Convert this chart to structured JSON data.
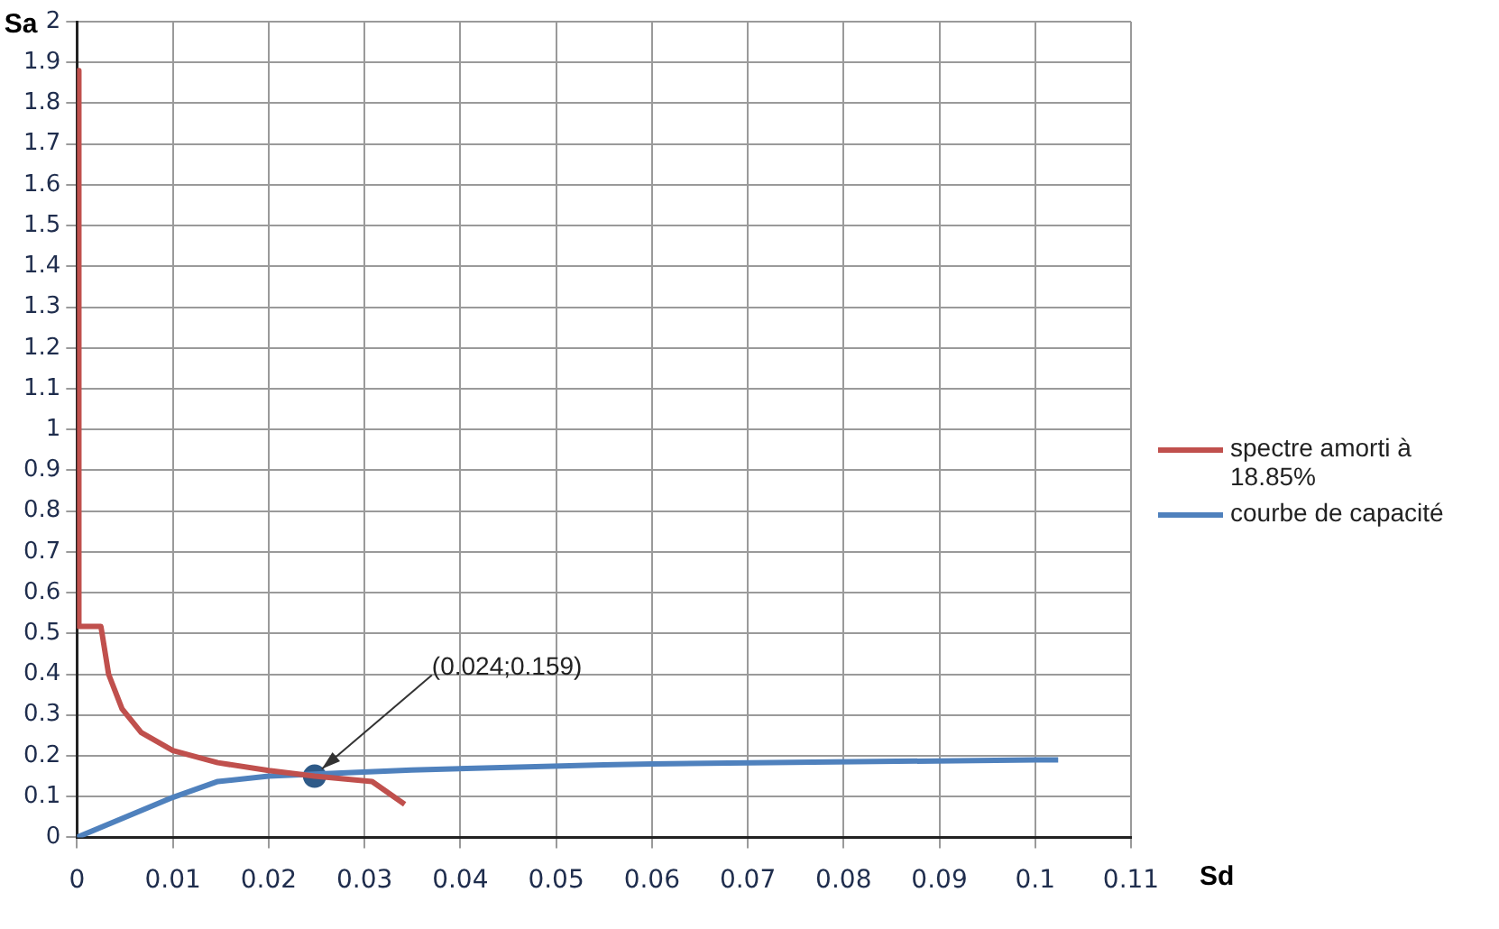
{
  "chart_data": {
    "type": "line",
    "xlabel": "Sd",
    "ylabel": "Sa",
    "xlim": [
      0,
      0.11
    ],
    "ylim": [
      0,
      2
    ],
    "xticks": [
      0,
      0.01,
      0.02,
      0.03,
      0.04,
      0.05,
      0.06,
      0.07,
      0.08,
      0.09,
      0.1,
      0.11
    ],
    "yticks": [
      0,
      0.1,
      0.2,
      0.3,
      0.4,
      0.5,
      0.6,
      0.7,
      0.8,
      0.9,
      1,
      1.1,
      1.2,
      1.3,
      1.4,
      1.5,
      1.6,
      1.7,
      1.8,
      1.9,
      2
    ],
    "grid": true,
    "legend": "right",
    "marker": "none",
    "series": [
      {
        "name": "spectre amorti à 18.85%",
        "color": "#c0504d",
        "x": [
          0.0002,
          0.0002,
          0.0025,
          0.0033,
          0.0047,
          0.0067,
          0.01,
          0.0147,
          0.02,
          0.0248,
          0.0308,
          0.0342
        ],
        "values": [
          1.88,
          0.517,
          0.517,
          0.4,
          0.315,
          0.257,
          0.213,
          0.183,
          0.164,
          0.15,
          0.137,
          0.081
        ]
      },
      {
        "name": "courbe de capacité",
        "color": "#4f81bd",
        "x": [
          0,
          0.01,
          0.0147,
          0.02,
          0.0248,
          0.0349,
          0.055,
          0.06,
          0.1,
          0.1024
        ],
        "values": [
          0,
          0.098,
          0.137,
          0.15,
          0.155,
          0.165,
          0.178,
          0.18,
          0.19,
          0.19
        ]
      },
      {
        "type": "scatter",
        "color": "#2e5a88",
        "marker": "circle",
        "x": [
          0.0248
        ],
        "values": [
          0.15
        ]
      }
    ],
    "annotations": [
      {
        "text": "(0.024;0.159)",
        "x": 0.0248,
        "y": 0.15
      }
    ]
  }
}
